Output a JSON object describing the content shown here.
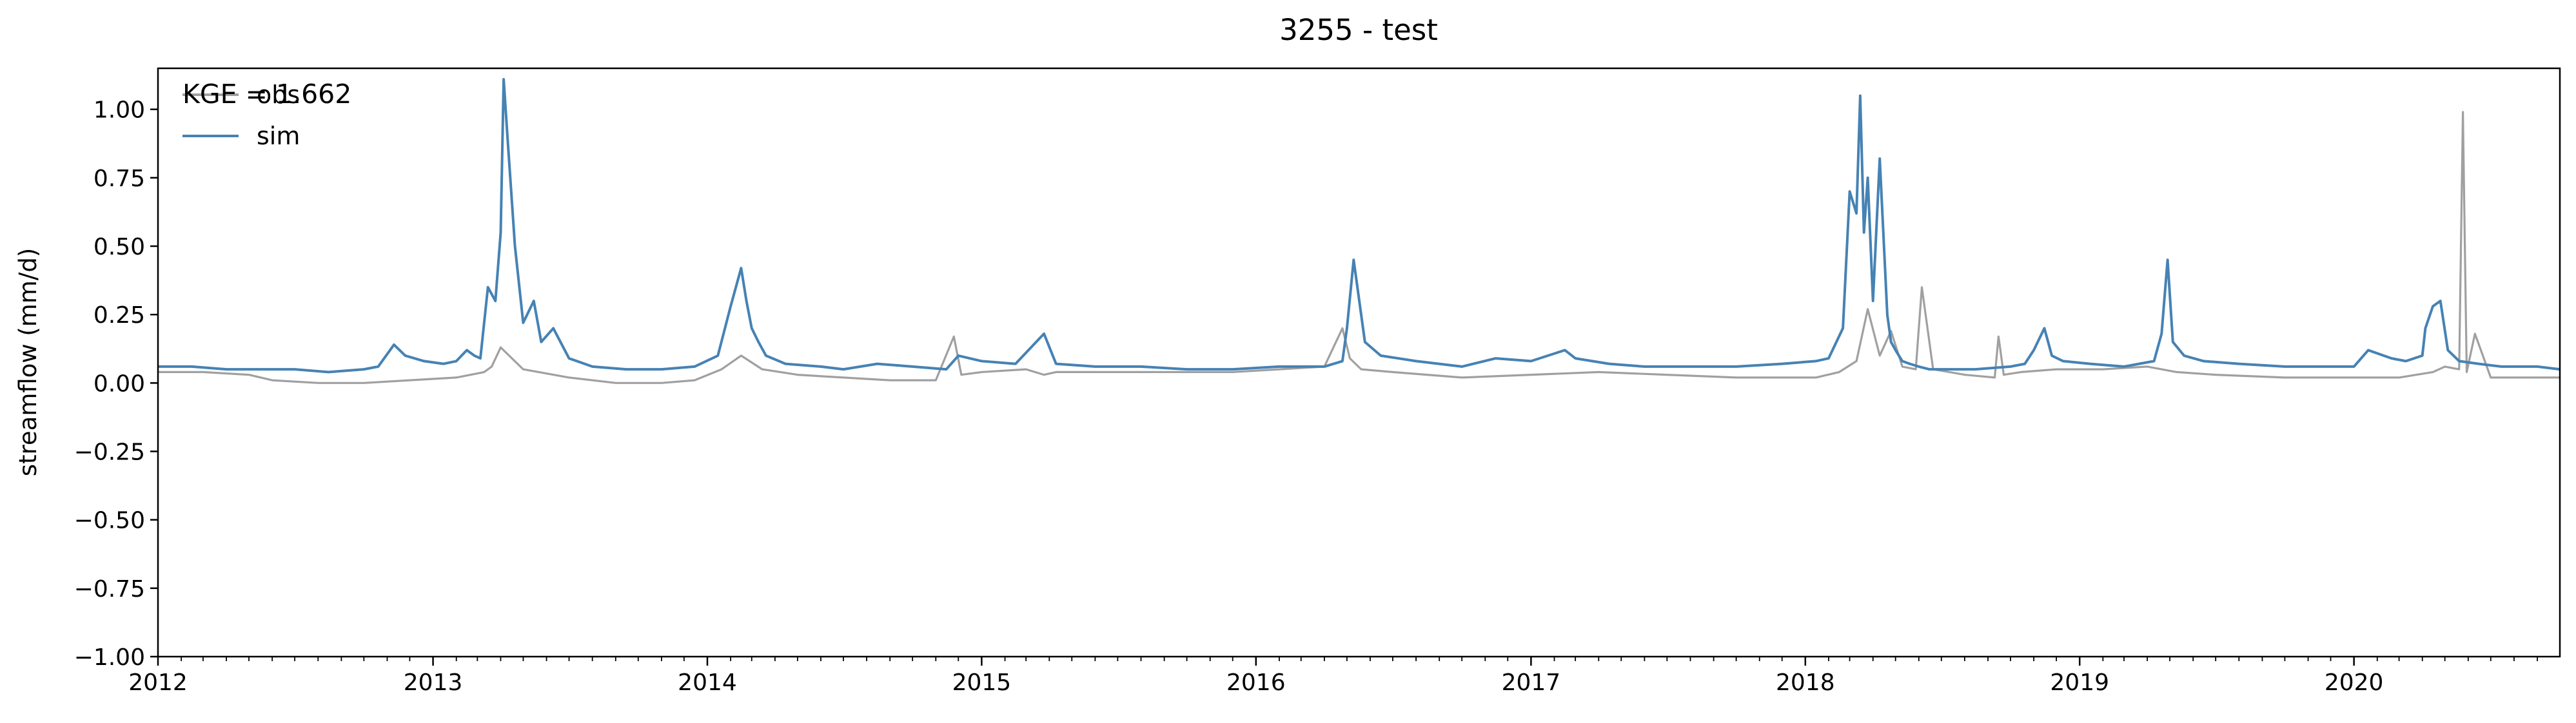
{
  "colors": {
    "obs": "#a0a0a0",
    "sim": "#4682b4",
    "axis": "#000000",
    "background": "#ffffff"
  },
  "chart_data": {
    "type": "line",
    "title": "3255 - test",
    "xlabel": "",
    "ylabel": "streamflow (mm/d)",
    "xlim": [
      "2012-01-01",
      "2020-10-01"
    ],
    "ylim": [
      -1.0,
      1.15
    ],
    "y_ticks": [
      -1.0,
      -0.75,
      -0.5,
      -0.25,
      0.0,
      0.25,
      0.5,
      0.75,
      1.0
    ],
    "y_tick_labels": [
      "−1.00",
      "−0.75",
      "−0.50",
      "−0.25",
      "0.00",
      "0.25",
      "0.50",
      "0.75",
      "1.00"
    ],
    "x_ticks": [
      "2012-01-01",
      "2013-01-01",
      "2014-01-01",
      "2015-01-01",
      "2016-01-01",
      "2017-01-01",
      "2018-01-01",
      "2019-01-01",
      "2020-01-01"
    ],
    "x_tick_labels": [
      "2012",
      "2013",
      "2014",
      "2015",
      "2016",
      "2017",
      "2018",
      "2019",
      "2020"
    ],
    "grid": false,
    "legend": "top-left",
    "annotation": "KGE = 1.662",
    "series": [
      {
        "name": "obs",
        "color": "#a0a0a0",
        "x": [
          "2012-01-01",
          "2012-03-01",
          "2012-05-01",
          "2012-06-01",
          "2012-08-01",
          "2012-10-01",
          "2012-12-01",
          "2013-02-01",
          "2013-03-10",
          "2013-03-20",
          "2013-04-01",
          "2013-05-01",
          "2013-07-01",
          "2013-09-01",
          "2013-11-01",
          "2013-12-15",
          "2014-01-20",
          "2014-02-15",
          "2014-03-15",
          "2014-05-01",
          "2014-07-01",
          "2014-09-01",
          "2014-11-01",
          "2014-11-25",
          "2014-12-05",
          "2015-01-01",
          "2015-03-01",
          "2015-03-25",
          "2015-04-10",
          "2015-06-01",
          "2015-09-01",
          "2015-12-01",
          "2016-02-01",
          "2016-04-01",
          "2016-04-25",
          "2016-05-05",
          "2016-05-20",
          "2016-07-01",
          "2016-10-01",
          "2017-01-01",
          "2017-04-01",
          "2017-07-01",
          "2017-10-01",
          "2017-12-01",
          "2018-01-15",
          "2018-02-15",
          "2018-03-10",
          "2018-03-25",
          "2018-04-10",
          "2018-04-25",
          "2018-05-10",
          "2018-05-28",
          "2018-06-05",
          "2018-06-20",
          "2018-08-01",
          "2018-09-10",
          "2018-09-15",
          "2018-09-22",
          "2018-10-15",
          "2018-12-01",
          "2019-02-01",
          "2019-04-01",
          "2019-04-20",
          "2019-05-10",
          "2019-07-01",
          "2019-10-01",
          "2020-01-01",
          "2020-03-01",
          "2020-04-15",
          "2020-05-01",
          "2020-05-20",
          "2020-05-25",
          "2020-05-30",
          "2020-06-10",
          "2020-07-01",
          "2020-08-01",
          "2020-09-01",
          "2020-10-01"
        ],
        "values": [
          0.04,
          0.04,
          0.03,
          0.01,
          0.0,
          0.0,
          0.01,
          0.02,
          0.04,
          0.06,
          0.13,
          0.05,
          0.02,
          0.0,
          0.0,
          0.01,
          0.05,
          0.1,
          0.05,
          0.03,
          0.02,
          0.01,
          0.01,
          0.17,
          0.03,
          0.04,
          0.05,
          0.03,
          0.04,
          0.04,
          0.04,
          0.04,
          0.05,
          0.06,
          0.2,
          0.09,
          0.05,
          0.04,
          0.02,
          0.03,
          0.04,
          0.03,
          0.02,
          0.02,
          0.02,
          0.04,
          0.08,
          0.27,
          0.1,
          0.19,
          0.06,
          0.05,
          0.35,
          0.05,
          0.03,
          0.02,
          0.17,
          0.03,
          0.04,
          0.05,
          0.05,
          0.06,
          0.05,
          0.04,
          0.03,
          0.02,
          0.02,
          0.02,
          0.04,
          0.06,
          0.05,
          0.99,
          0.04,
          0.18,
          0.02,
          0.02,
          0.02,
          0.02
        ]
      },
      {
        "name": "sim",
        "color": "#4682b4",
        "x": [
          "2012-01-01",
          "2012-02-15",
          "2012-04-01",
          "2012-05-15",
          "2012-07-01",
          "2012-08-15",
          "2012-10-01",
          "2012-10-20",
          "2012-11-10",
          "2012-11-25",
          "2012-12-20",
          "2013-01-15",
          "2013-02-01",
          "2013-02-15",
          "2013-02-25",
          "2013-03-05",
          "2013-03-15",
          "2013-03-25",
          "2013-04-01",
          "2013-04-05",
          "2013-04-10",
          "2013-04-20",
          "2013-05-01",
          "2013-05-15",
          "2013-05-25",
          "2013-06-10",
          "2013-07-01",
          "2013-08-01",
          "2013-09-15",
          "2013-11-01",
          "2013-12-15",
          "2014-01-15",
          "2014-02-01",
          "2014-02-15",
          "2014-02-22",
          "2014-03-01",
          "2014-03-10",
          "2014-03-20",
          "2014-04-15",
          "2014-06-01",
          "2014-07-01",
          "2014-08-15",
          "2014-10-01",
          "2014-11-15",
          "2014-12-01",
          "2015-01-01",
          "2015-02-15",
          "2015-03-25",
          "2015-04-10",
          "2015-06-01",
          "2015-08-01",
          "2015-10-01",
          "2015-12-01",
          "2016-02-01",
          "2016-04-01",
          "2016-04-25",
          "2016-05-01",
          "2016-05-10",
          "2016-05-25",
          "2016-06-15",
          "2016-08-01",
          "2016-10-01",
          "2016-11-15",
          "2017-01-01",
          "2017-02-15",
          "2017-03-01",
          "2017-04-15",
          "2017-06-01",
          "2017-08-01",
          "2017-10-01",
          "2017-12-01",
          "2018-01-15",
          "2018-02-01",
          "2018-02-20",
          "2018-03-01",
          "2018-03-10",
          "2018-03-15",
          "2018-03-20",
          "2018-03-25",
          "2018-04-01",
          "2018-04-10",
          "2018-04-20",
          "2018-04-25",
          "2018-05-01",
          "2018-05-10",
          "2018-05-20",
          "2018-06-01",
          "2018-06-15",
          "2018-07-01",
          "2018-08-15",
          "2018-10-01",
          "2018-10-20",
          "2018-11-01",
          "2018-11-15",
          "2018-11-25",
          "2018-12-10",
          "2019-01-15",
          "2019-03-01",
          "2019-04-10",
          "2019-04-20",
          "2019-04-28",
          "2019-05-05",
          "2019-05-20",
          "2019-06-15",
          "2019-08-01",
          "2019-10-01",
          "2019-12-15",
          "2020-01-01",
          "2020-01-20",
          "2020-02-20",
          "2020-03-10",
          "2020-04-01",
          "2020-04-05",
          "2020-04-15",
          "2020-04-25",
          "2020-05-05",
          "2020-05-20",
          "2020-06-15",
          "2020-07-15",
          "2020-09-01",
          "2020-10-01"
        ],
        "values": [
          0.06,
          0.06,
          0.05,
          0.05,
          0.05,
          0.04,
          0.05,
          0.06,
          0.14,
          0.1,
          0.08,
          0.07,
          0.08,
          0.12,
          0.1,
          0.09,
          0.35,
          0.3,
          0.55,
          1.11,
          0.9,
          0.5,
          0.22,
          0.3,
          0.15,
          0.2,
          0.09,
          0.06,
          0.05,
          0.05,
          0.06,
          0.1,
          0.28,
          0.42,
          0.3,
          0.2,
          0.15,
          0.1,
          0.07,
          0.06,
          0.05,
          0.07,
          0.06,
          0.05,
          0.1,
          0.08,
          0.07,
          0.18,
          0.07,
          0.06,
          0.06,
          0.05,
          0.05,
          0.06,
          0.06,
          0.08,
          0.2,
          0.45,
          0.15,
          0.1,
          0.08,
          0.06,
          0.09,
          0.08,
          0.12,
          0.09,
          0.07,
          0.06,
          0.06,
          0.06,
          0.07,
          0.08,
          0.09,
          0.2,
          0.7,
          0.62,
          1.05,
          0.55,
          0.75,
          0.3,
          0.82,
          0.25,
          0.15,
          0.12,
          0.08,
          0.07,
          0.06,
          0.05,
          0.05,
          0.05,
          0.06,
          0.07,
          0.12,
          0.2,
          0.1,
          0.08,
          0.07,
          0.06,
          0.08,
          0.18,
          0.45,
          0.15,
          0.1,
          0.08,
          0.07,
          0.06,
          0.06,
          0.06,
          0.12,
          0.09,
          0.08,
          0.1,
          0.2,
          0.28,
          0.3,
          0.12,
          0.08,
          0.07,
          0.06,
          0.06,
          0.05
        ]
      }
    ]
  }
}
